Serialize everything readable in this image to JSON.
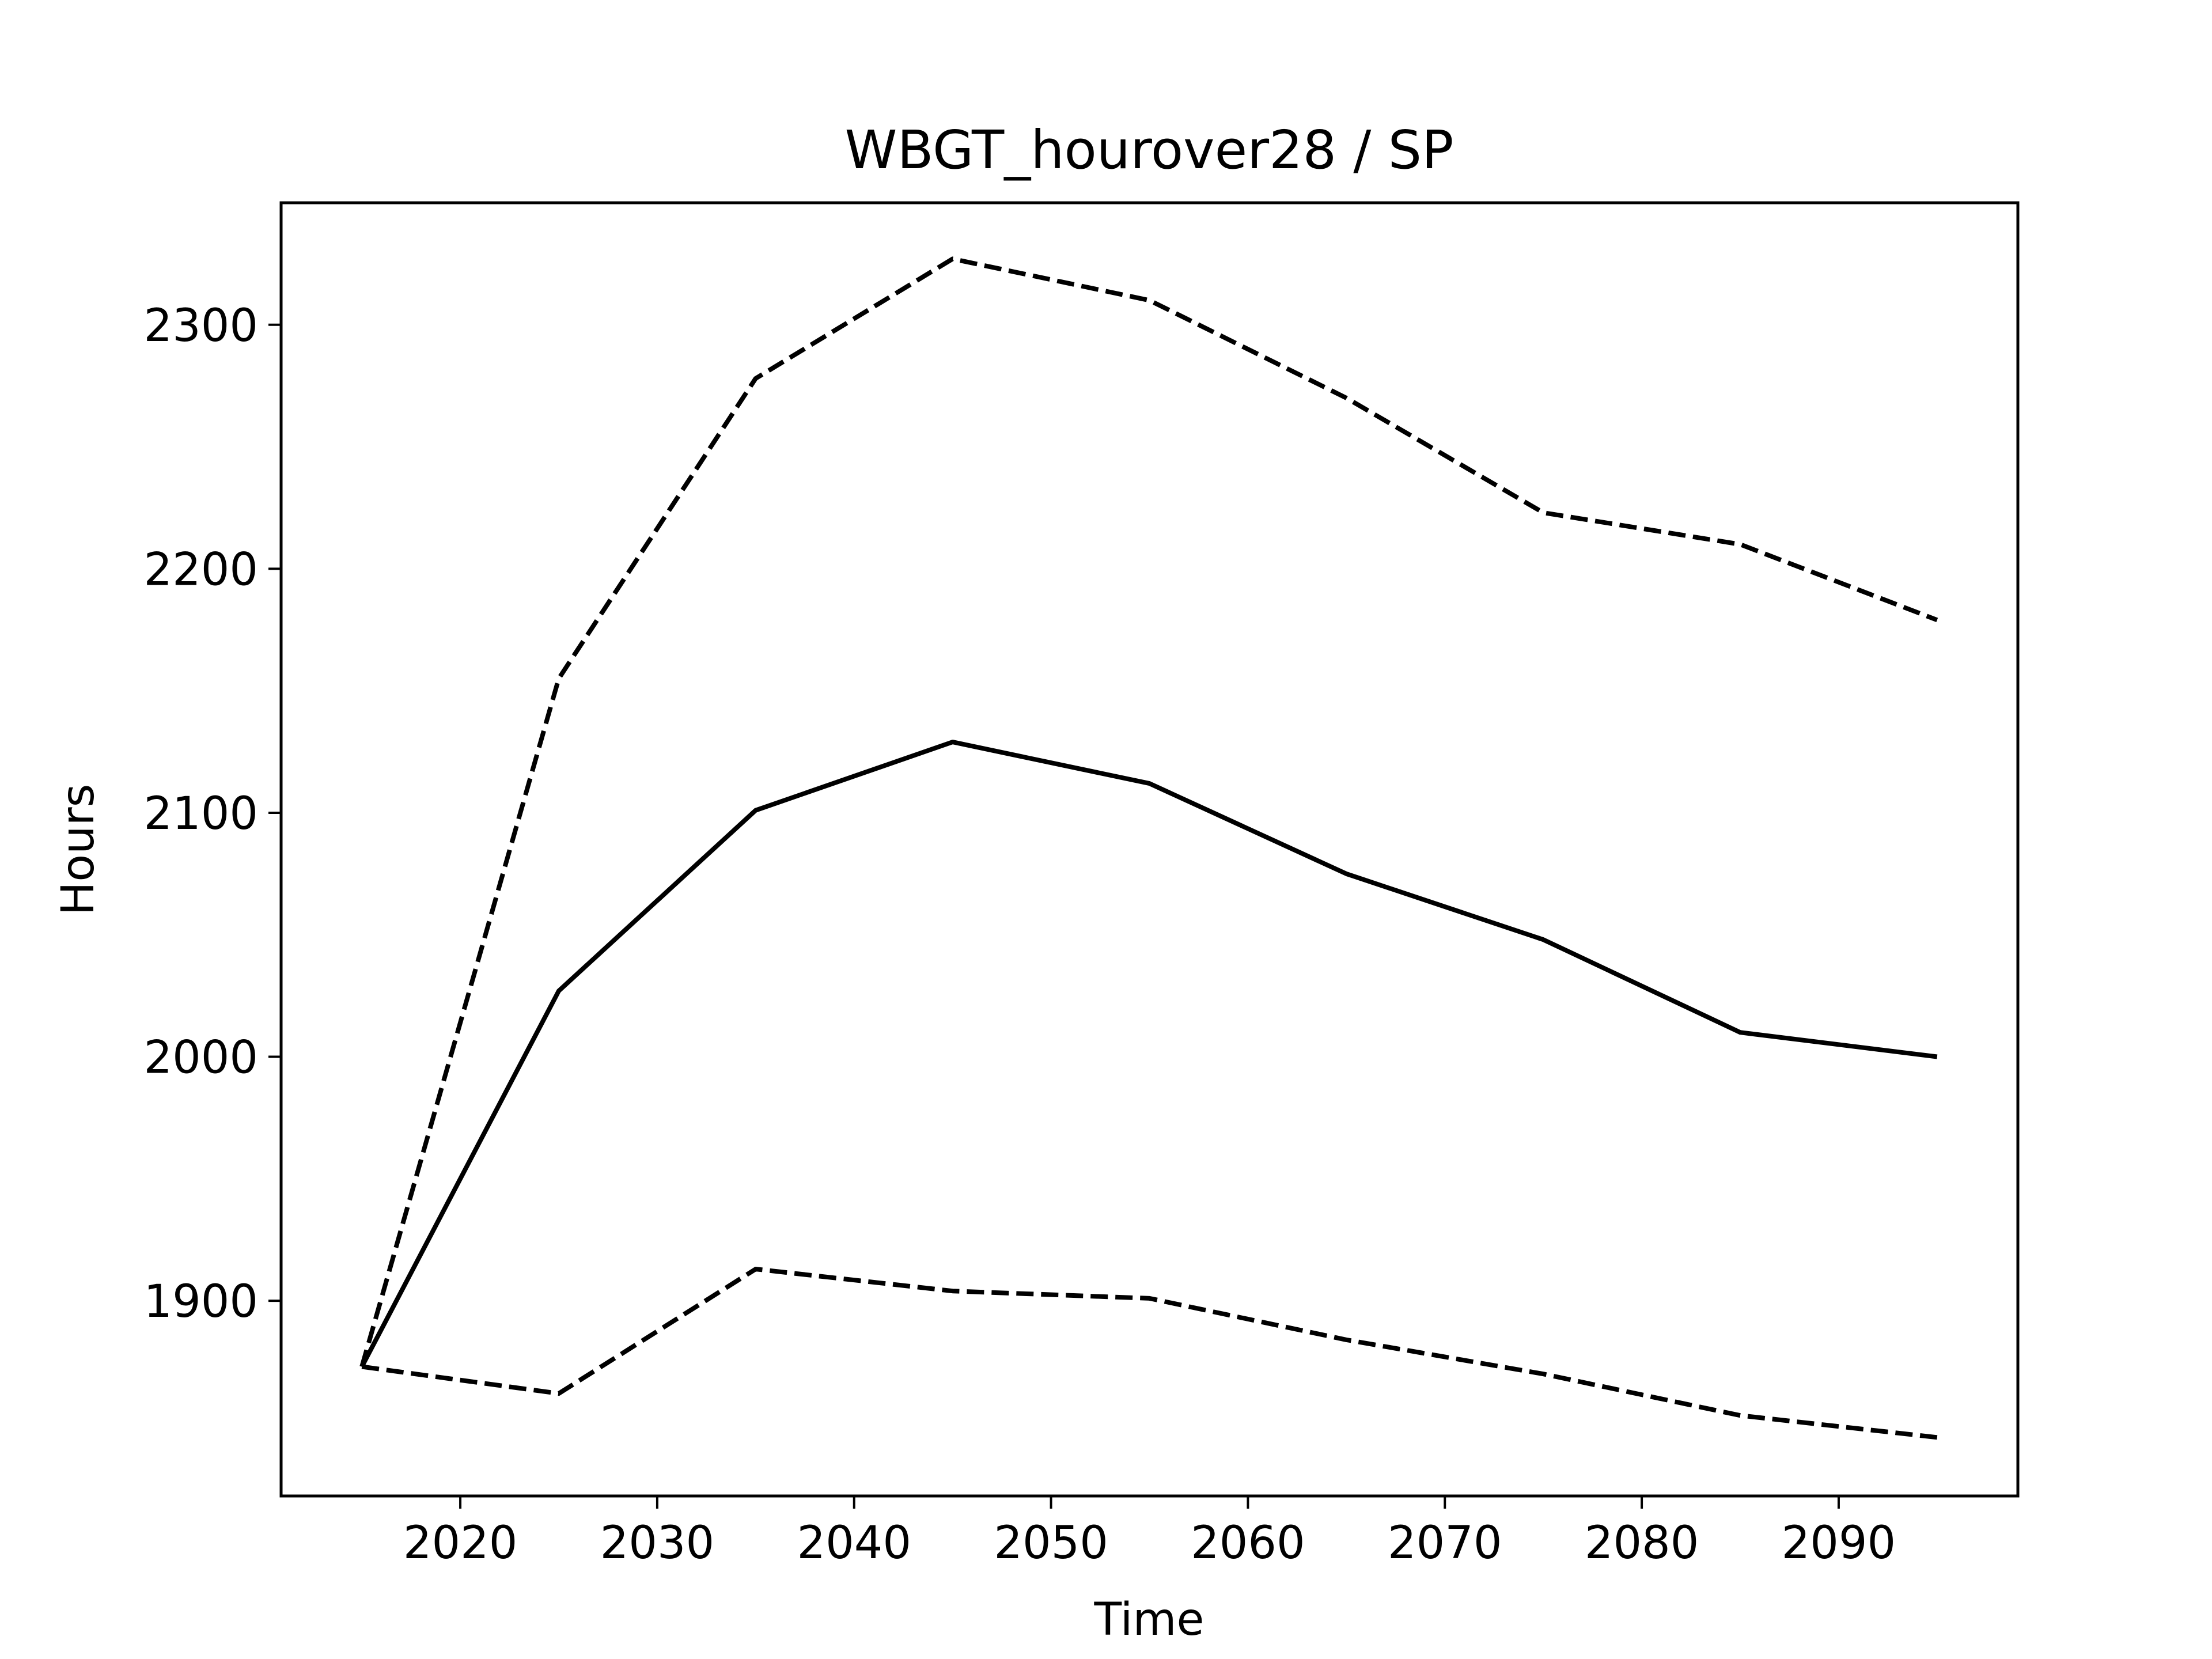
{
  "chart_data": {
    "type": "line",
    "title": "WBGT_hourover28 / SP",
    "xlabel": "Time",
    "ylabel": "Hours",
    "x": [
      2015,
      2025,
      2035,
      2045,
      2055,
      2065,
      2075,
      2085,
      2095
    ],
    "xlim": [
      2010.9,
      2099.1
    ],
    "ylim": [
      1820,
      2350
    ],
    "xticks": [
      2020,
      2030,
      2040,
      2050,
      2060,
      2070,
      2080,
      2090
    ],
    "yticks": [
      1900,
      2000,
      2100,
      2200,
      2300
    ],
    "grid": false,
    "legend": false,
    "color": "#000000",
    "series": [
      {
        "style": "dashed",
        "values": [
          1873,
          2155,
          2278,
          2327,
          2310,
          2270,
          2223,
          2210,
          2179
        ]
      },
      {
        "style": "solid",
        "values": [
          1873,
          2027,
          2101,
          2129,
          2112,
          2075,
          2048,
          2010,
          2000
        ]
      },
      {
        "style": "dashed",
        "values": [
          1873,
          1862,
          1913,
          1904,
          1901,
          1884,
          1870,
          1853,
          1844
        ]
      }
    ]
  }
}
